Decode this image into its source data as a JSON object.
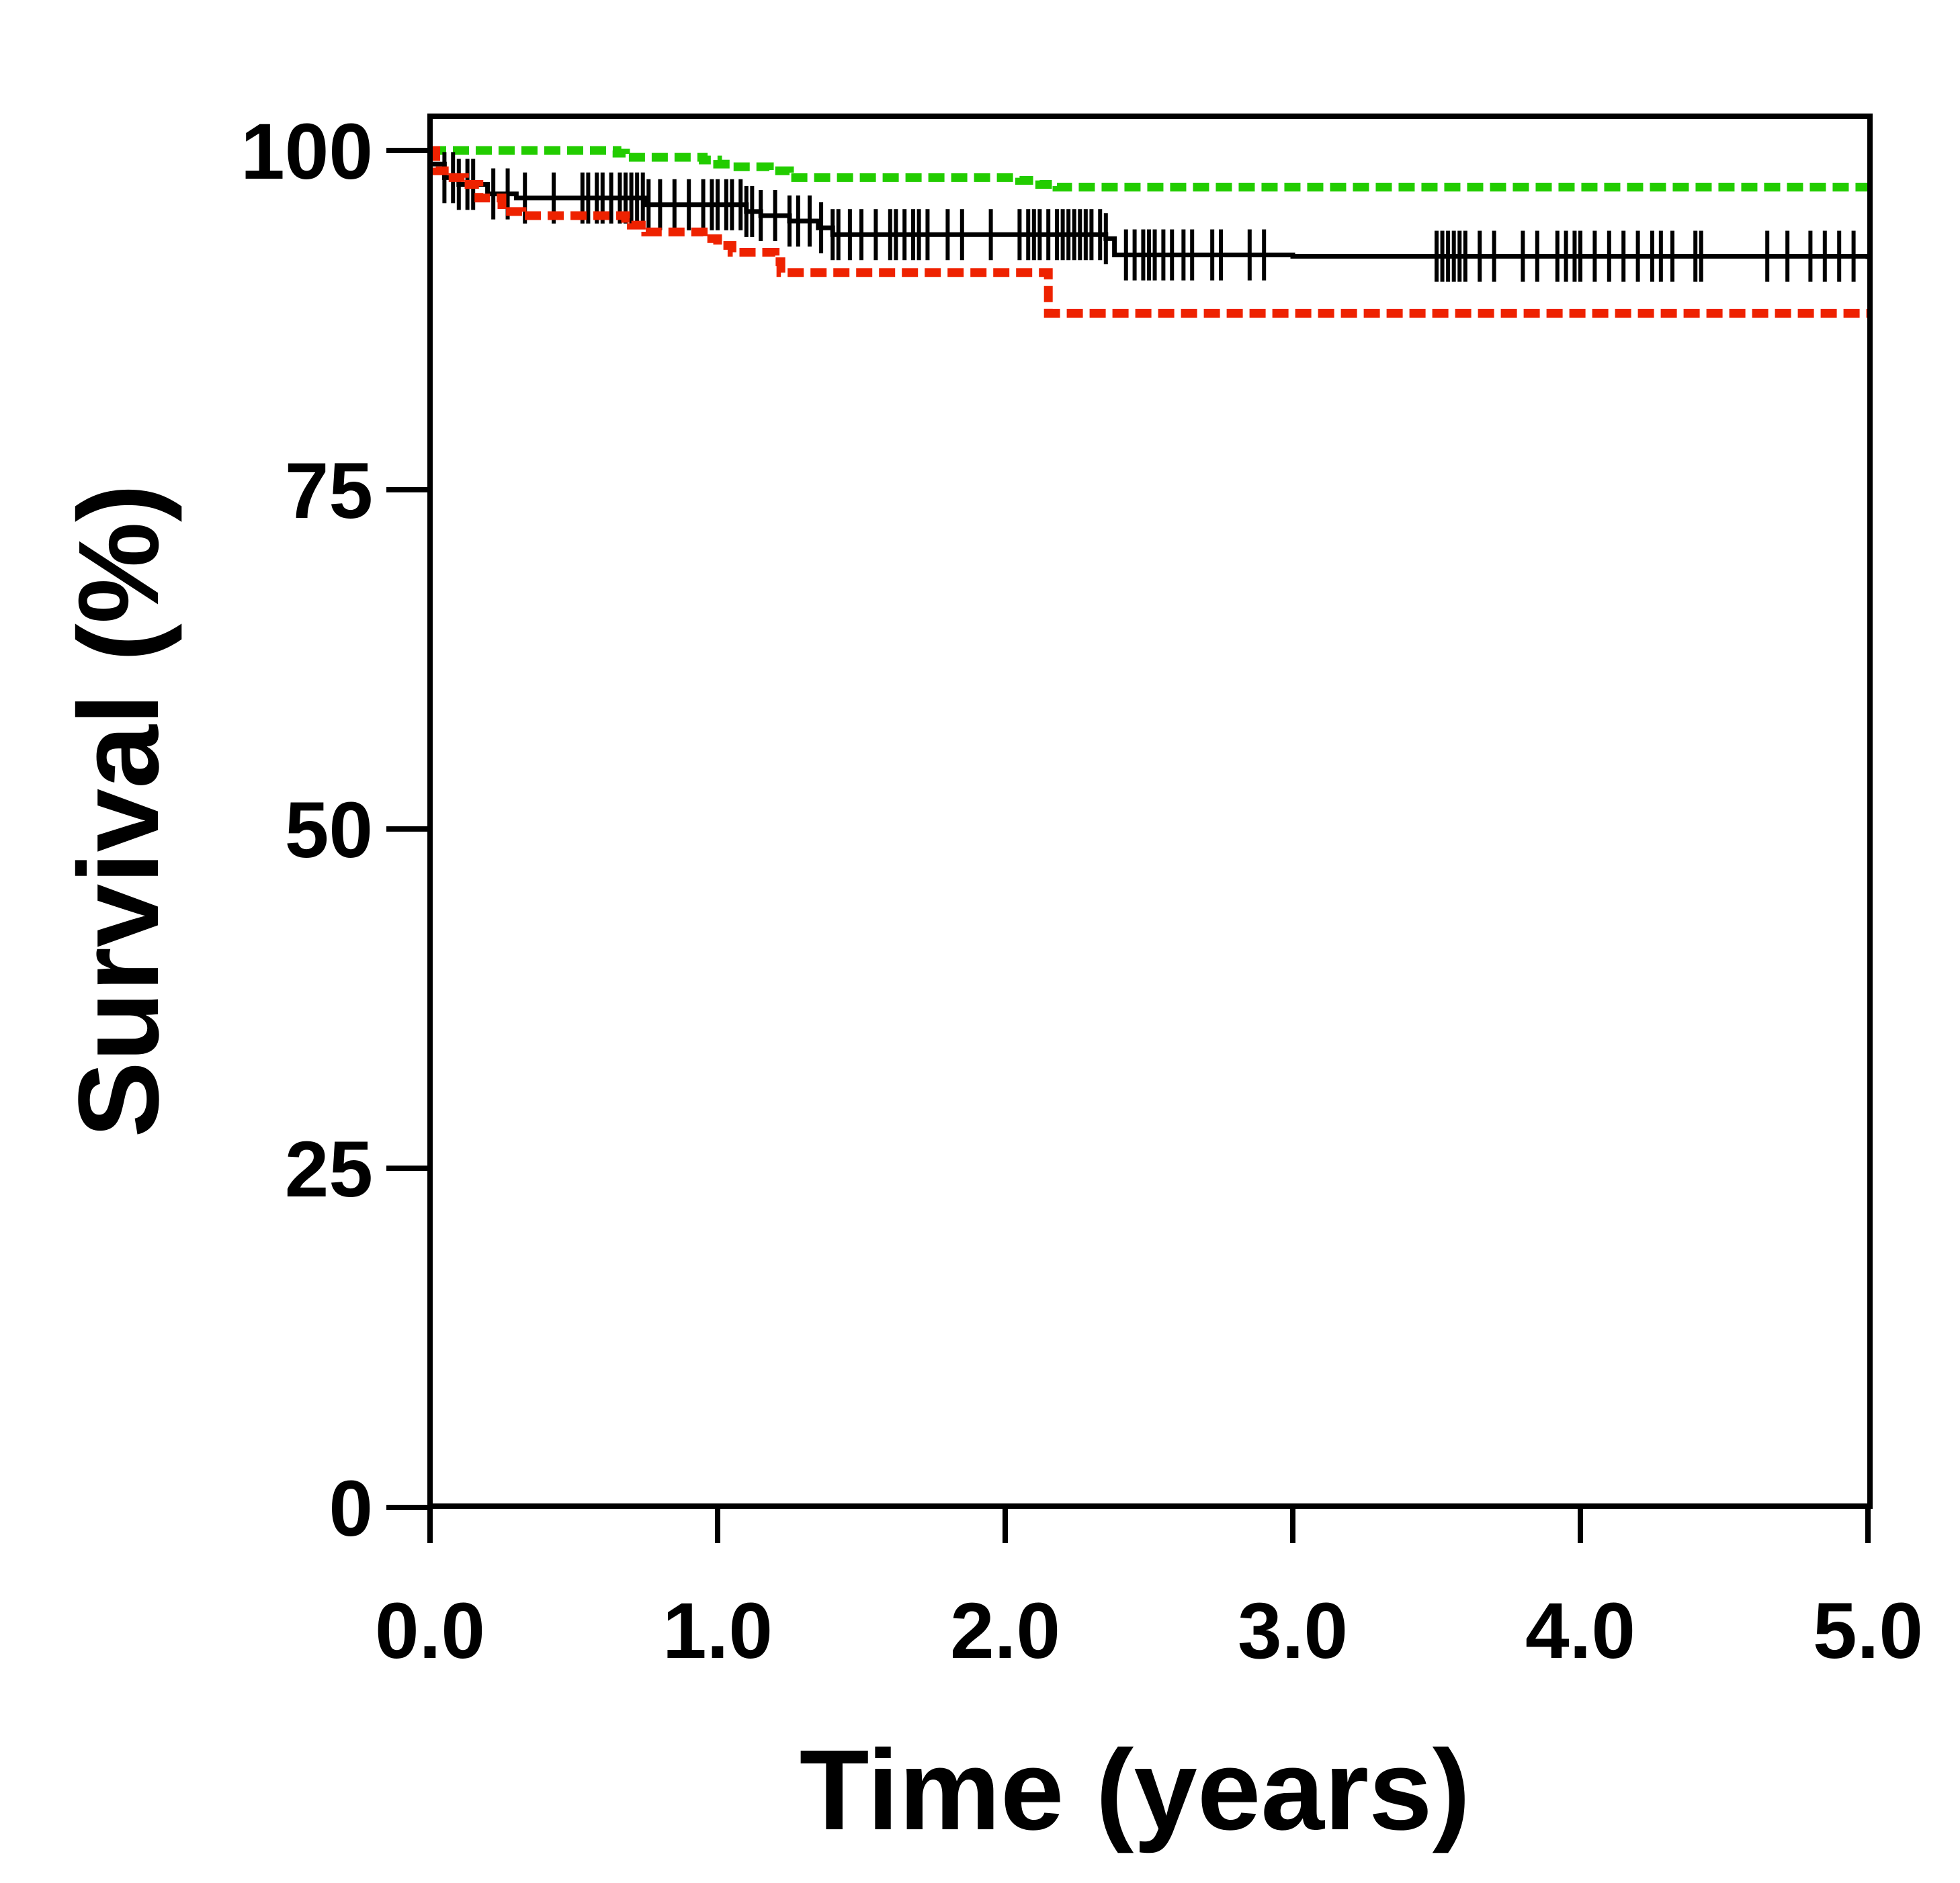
{
  "chart_data": {
    "type": "line",
    "subtype": "kaplan-meier step curve with censor ticks",
    "title": "",
    "xlabel": "Time (years)",
    "ylabel": "Survival (%)",
    "xlim": [
      0,
      5
    ],
    "ylim": [
      0,
      100
    ],
    "x_ticks": [
      0,
      1,
      2,
      3,
      4,
      5
    ],
    "x_tick_labels": [
      "0.0",
      "1.0",
      "2.0",
      "3.0",
      "4.0",
      "5.0"
    ],
    "y_ticks": [
      0,
      25,
      50,
      75,
      100
    ],
    "y_tick_labels": [
      "0",
      "25",
      "50",
      "75",
      "100"
    ],
    "grid": false,
    "legend": "none",
    "series": [
      {
        "color": "#22cc00",
        "style": "dashed",
        "steps": [
          [
            0,
            100
          ],
          [
            0.65,
            99.8
          ],
          [
            0.68,
            99.5
          ],
          [
            0.95,
            99.3
          ],
          [
            1.0,
            99.0
          ],
          [
            1.05,
            98.8
          ],
          [
            1.18,
            98.5
          ],
          [
            1.25,
            98.0
          ],
          [
            2.05,
            97.8
          ],
          [
            2.12,
            97.5
          ],
          [
            2.18,
            97.3
          ],
          [
            5.0,
            97.3
          ]
        ]
      },
      {
        "color": "#000000",
        "style": "solid",
        "steps": [
          [
            0,
            99
          ],
          [
            0.05,
            98
          ],
          [
            0.1,
            97.5
          ],
          [
            0.2,
            96.8
          ],
          [
            0.3,
            96.5
          ],
          [
            0.75,
            96.0
          ],
          [
            1.1,
            95.5
          ],
          [
            1.15,
            95.2
          ],
          [
            1.25,
            94.8
          ],
          [
            1.35,
            94.3
          ],
          [
            1.4,
            93.8
          ],
          [
            2.35,
            93.5
          ],
          [
            2.38,
            92.3
          ],
          [
            3.0,
            92.2
          ],
          [
            5.0,
            92.0
          ]
        ],
        "censor_times": [
          0.05,
          0.08,
          0.1,
          0.13,
          0.15,
          0.22,
          0.27,
          0.33,
          0.43,
          0.53,
          0.55,
          0.58,
          0.6,
          0.63,
          0.66,
          0.68,
          0.7,
          0.72,
          0.74,
          0.76,
          0.8,
          0.85,
          0.9,
          0.95,
          0.98,
          1.0,
          1.03,
          1.05,
          1.08,
          1.1,
          1.12,
          1.15,
          1.2,
          1.25,
          1.28,
          1.32,
          1.36,
          1.4,
          1.42,
          1.46,
          1.5,
          1.55,
          1.6,
          1.62,
          1.65,
          1.68,
          1.7,
          1.73,
          1.8,
          1.85,
          1.95,
          2.05,
          2.08,
          2.1,
          2.12,
          2.15,
          2.18,
          2.2,
          2.22,
          2.24,
          2.26,
          2.28,
          2.3,
          2.33,
          2.35,
          2.42,
          2.45,
          2.48,
          2.5,
          2.52,
          2.55,
          2.58,
          2.62,
          2.65,
          2.72,
          2.75,
          2.85,
          2.9,
          3.5,
          3.52,
          3.54,
          3.56,
          3.58,
          3.6,
          3.65,
          3.7,
          3.8,
          3.85,
          3.92,
          3.95,
          3.98,
          4.0,
          4.05,
          4.1,
          4.15,
          4.2,
          4.25,
          4.28,
          4.32,
          4.4,
          4.42,
          4.65,
          4.72,
          4.8,
          4.85,
          4.9,
          4.95
        ]
      },
      {
        "color": "#ee2200",
        "style": "dashed",
        "steps": [
          [
            0,
            100
          ],
          [
            0.02,
            98.5
          ],
          [
            0.08,
            98.0
          ],
          [
            0.12,
            97.5
          ],
          [
            0.17,
            96.5
          ],
          [
            0.25,
            95.5
          ],
          [
            0.32,
            95.2
          ],
          [
            0.68,
            95.0
          ],
          [
            0.7,
            94.5
          ],
          [
            0.75,
            94.0
          ],
          [
            0.95,
            93.5
          ],
          [
            1.0,
            93.0
          ],
          [
            1.05,
            92.5
          ],
          [
            1.2,
            91.8
          ],
          [
            1.22,
            91.0
          ],
          [
            2.1,
            91.0
          ],
          [
            2.15,
            88.0
          ],
          [
            5.0,
            88.0
          ]
        ]
      }
    ]
  }
}
